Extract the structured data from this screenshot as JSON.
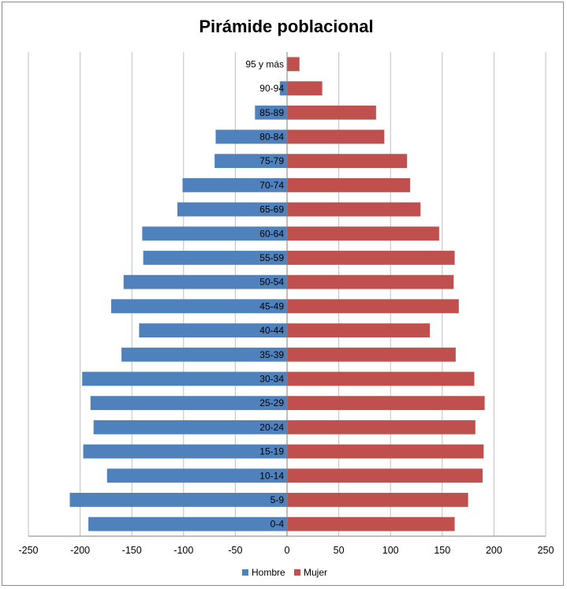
{
  "chart_data": {
    "type": "bar",
    "orientation": "horizontal",
    "title": "Pirámide poblacional",
    "categories": [
      "0-4",
      "5-9",
      "10-14",
      "15-19",
      "20-24",
      "25-29",
      "30-34",
      "35-39",
      "40-44",
      "45-49",
      "50-54",
      "55-59",
      "60-64",
      "65-69",
      "70-74",
      "75-79",
      "80-84",
      "85-89",
      "90-94",
      "95 y más"
    ],
    "series": [
      {
        "name": "Hombre",
        "color": "#4f81bd",
        "values": [
          -192,
          -210,
          -174,
          -197,
          -187,
          -190,
          -198,
          -160,
          -143,
          -170,
          -158,
          -139,
          -140,
          -106,
          -101,
          -70,
          -69,
          -31,
          -7,
          0
        ]
      },
      {
        "name": "Mujer",
        "color": "#c0504d",
        "values": [
          162,
          175,
          189,
          190,
          182,
          191,
          181,
          163,
          138,
          166,
          161,
          162,
          147,
          129,
          119,
          116,
          94,
          86,
          34,
          12
        ]
      }
    ],
    "xlim": [
      -250,
      250
    ],
    "xticks": [
      "-250",
      "-200",
      "-150",
      "-100",
      "-50",
      "0",
      "50",
      "100",
      "150",
      "200",
      "250"
    ],
    "grid": true,
    "legend_position": "bottom"
  }
}
